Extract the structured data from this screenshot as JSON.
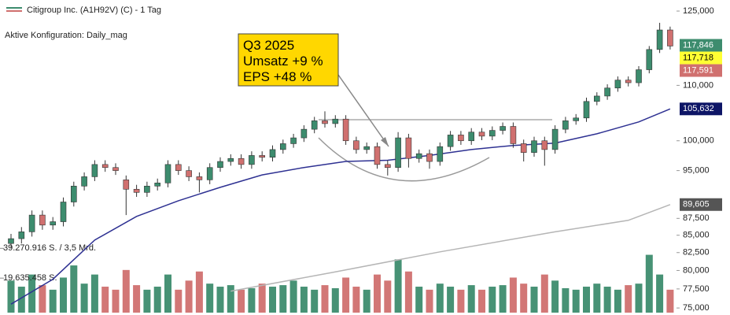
{
  "chart_data": {
    "type": "candlestick",
    "title": "Citigroup Inc. (A1H92V) (C) - 1 Tag",
    "subtitle": "Aktive Konfiguration: Daily_mag",
    "annotation": [
      "Q3 2025",
      "Umsatz +9 %",
      "EPS +48 %"
    ],
    "log_scale": true,
    "ylim": [
      74100,
      127400
    ],
    "yticks": [
      {
        "value": 125000,
        "label": "125,000"
      },
      {
        "value": 110000,
        "label": "110,000"
      },
      {
        "value": 100000,
        "label": "100,000"
      },
      {
        "value": 95000,
        "label": "95,000"
      },
      {
        "value": 87500,
        "label": "87,500"
      },
      {
        "value": 85000,
        "label": "85,000"
      },
      {
        "value": 82500,
        "label": "82,500"
      },
      {
        "value": 80000,
        "label": "80,000"
      },
      {
        "value": 77500,
        "label": "77,500"
      },
      {
        "value": 75000,
        "label": "75,000"
      }
    ],
    "up_color": "#3d8c6e",
    "down_color": "#d0706f",
    "open": [
      83800,
      84500,
      85500,
      88000,
      86500,
      87000,
      90000,
      92500,
      94000,
      96000,
      95500,
      93500,
      92000,
      91500,
      92500,
      93000,
      96000,
      95000,
      94000,
      93500,
      95500,
      96500,
      97000,
      96000,
      97500,
      97200,
      98500,
      99500,
      100500,
      102000,
      103500,
      103000,
      103800,
      100000,
      98500,
      99000,
      96000,
      95500,
      100500,
      97000,
      97800,
      96500,
      99000,
      101000,
      100000,
      101500,
      100800,
      101800,
      102500,
      99500,
      98000,
      100000,
      98500,
      102000,
      103500,
      104000,
      107000,
      108000,
      109500,
      111000,
      110500,
      113000,
      117000,
      121000
    ],
    "high": [
      85200,
      86200,
      88700,
      88700,
      87700,
      90700,
      93200,
      94700,
      96700,
      96700,
      96200,
      94200,
      92700,
      93200,
      93700,
      96700,
      96700,
      95700,
      94700,
      96200,
      97200,
      97700,
      97700,
      98200,
      98200,
      99200,
      100200,
      101200,
      102700,
      104200,
      105200,
      104500,
      104500,
      100700,
      99700,
      99700,
      96700,
      101500,
      101200,
      98500,
      98500,
      99700,
      101700,
      101700,
      102200,
      102200,
      102500,
      103200,
      103200,
      100200,
      100700,
      100700,
      102700,
      104200,
      104700,
      107700,
      108700,
      110200,
      111700,
      111700,
      113700,
      117700,
      122500,
      121700
    ],
    "low": [
      83100,
      83800,
      84800,
      85800,
      85800,
      86300,
      89300,
      91800,
      93300,
      94800,
      94300,
      88000,
      90800,
      90800,
      91800,
      92300,
      94300,
      93300,
      91500,
      92800,
      94800,
      95800,
      95300,
      95300,
      96500,
      96500,
      97800,
      98800,
      99800,
      101300,
      102300,
      102300,
      99300,
      97800,
      97800,
      95300,
      94200,
      94800,
      95500,
      96300,
      95300,
      95800,
      98300,
      99300,
      99300,
      100100,
      100100,
      101100,
      98800,
      96500,
      97300,
      95800,
      97800,
      101300,
      102800,
      103300,
      106300,
      107300,
      108800,
      109800,
      109800,
      112300,
      116300,
      117000
    ],
    "close": [
      84500,
      85500,
      88000,
      86500,
      87000,
      90000,
      92500,
      94000,
      96000,
      95500,
      95000,
      92000,
      91500,
      92500,
      93000,
      96000,
      95000,
      94000,
      93500,
      95500,
      96500,
      97000,
      96000,
      97500,
      97200,
      98500,
      99500,
      100500,
      102000,
      103500,
      103000,
      103800,
      100000,
      98500,
      99000,
      96000,
      95500,
      100500,
      97000,
      97800,
      96500,
      99000,
      101000,
      100000,
      101500,
      100800,
      101800,
      102500,
      99500,
      98000,
      100000,
      98500,
      102000,
      103500,
      104000,
      107000,
      108000,
      109500,
      111000,
      110500,
      113000,
      117000,
      121000,
      117700
    ],
    "volume": [
      18000000,
      14000000,
      22000000,
      15000000,
      12000000,
      20000000,
      28000000,
      16000000,
      22000000,
      14000000,
      12000000,
      25000000,
      15000000,
      12000000,
      14000000,
      22000000,
      12000000,
      18000000,
      24000000,
      16000000,
      14000000,
      15000000,
      12000000,
      13000000,
      16000000,
      14000000,
      15000000,
      18000000,
      14000000,
      12000000,
      15000000,
      13000000,
      20000000,
      14000000,
      12000000,
      22000000,
      18000000,
      32000000,
      24000000,
      14000000,
      12000000,
      16000000,
      14000000,
      12000000,
      15000000,
      12000000,
      14000000,
      15000000,
      20000000,
      16000000,
      14000000,
      22000000,
      18000000,
      13000000,
      12000000,
      14000000,
      16000000,
      14000000,
      12000000,
      15000000,
      16000000,
      35000000,
      22000000,
      12000000
    ],
    "vlim": [
      0,
      41000000
    ],
    "vticks": [
      {
        "value": 39270916,
        "label": "39.270.916 S. / 3,5 Mrd."
      },
      {
        "value": 19635458,
        "label": "19.635.458 S."
      }
    ],
    "lines": [
      {
        "color": "#2e3192",
        "x": [
          0,
          4,
          8,
          12,
          16,
          20,
          24,
          28,
          32,
          36,
          40,
          44,
          48,
          52,
          56,
          60,
          63
        ],
        "values": [
          75500,
          78800,
          84300,
          87800,
          90200,
          92300,
          94300,
          95500,
          96500,
          96700,
          97500,
          98500,
          99200,
          99600,
          101200,
          103300,
          105632
        ]
      },
      {
        "color": "#b5b5b5",
        "x": [
          21,
          31,
          41,
          52,
          59,
          63
        ],
        "values": [
          77200,
          79800,
          82600,
          85500,
          87200,
          89605
        ]
      }
    ],
    "price_tags": [
      {
        "value": 117846,
        "label": "117,846",
        "color": "#3d8c6e",
        "text_color": "#ffffff"
      },
      {
        "value": 117718,
        "label": "117,718",
        "color": "#ffff33",
        "text_color": "#000000"
      },
      {
        "value": 117591,
        "label": "117,591",
        "color": "#d0706f",
        "text_color": "#ffffff"
      },
      {
        "value": 105632,
        "label": "105,632",
        "color": "#0d1566",
        "text_color": "#ffffff"
      },
      {
        "value": 89605,
        "label": "89,605",
        "color": "#555555",
        "text_color": "#ffffff"
      }
    ]
  }
}
